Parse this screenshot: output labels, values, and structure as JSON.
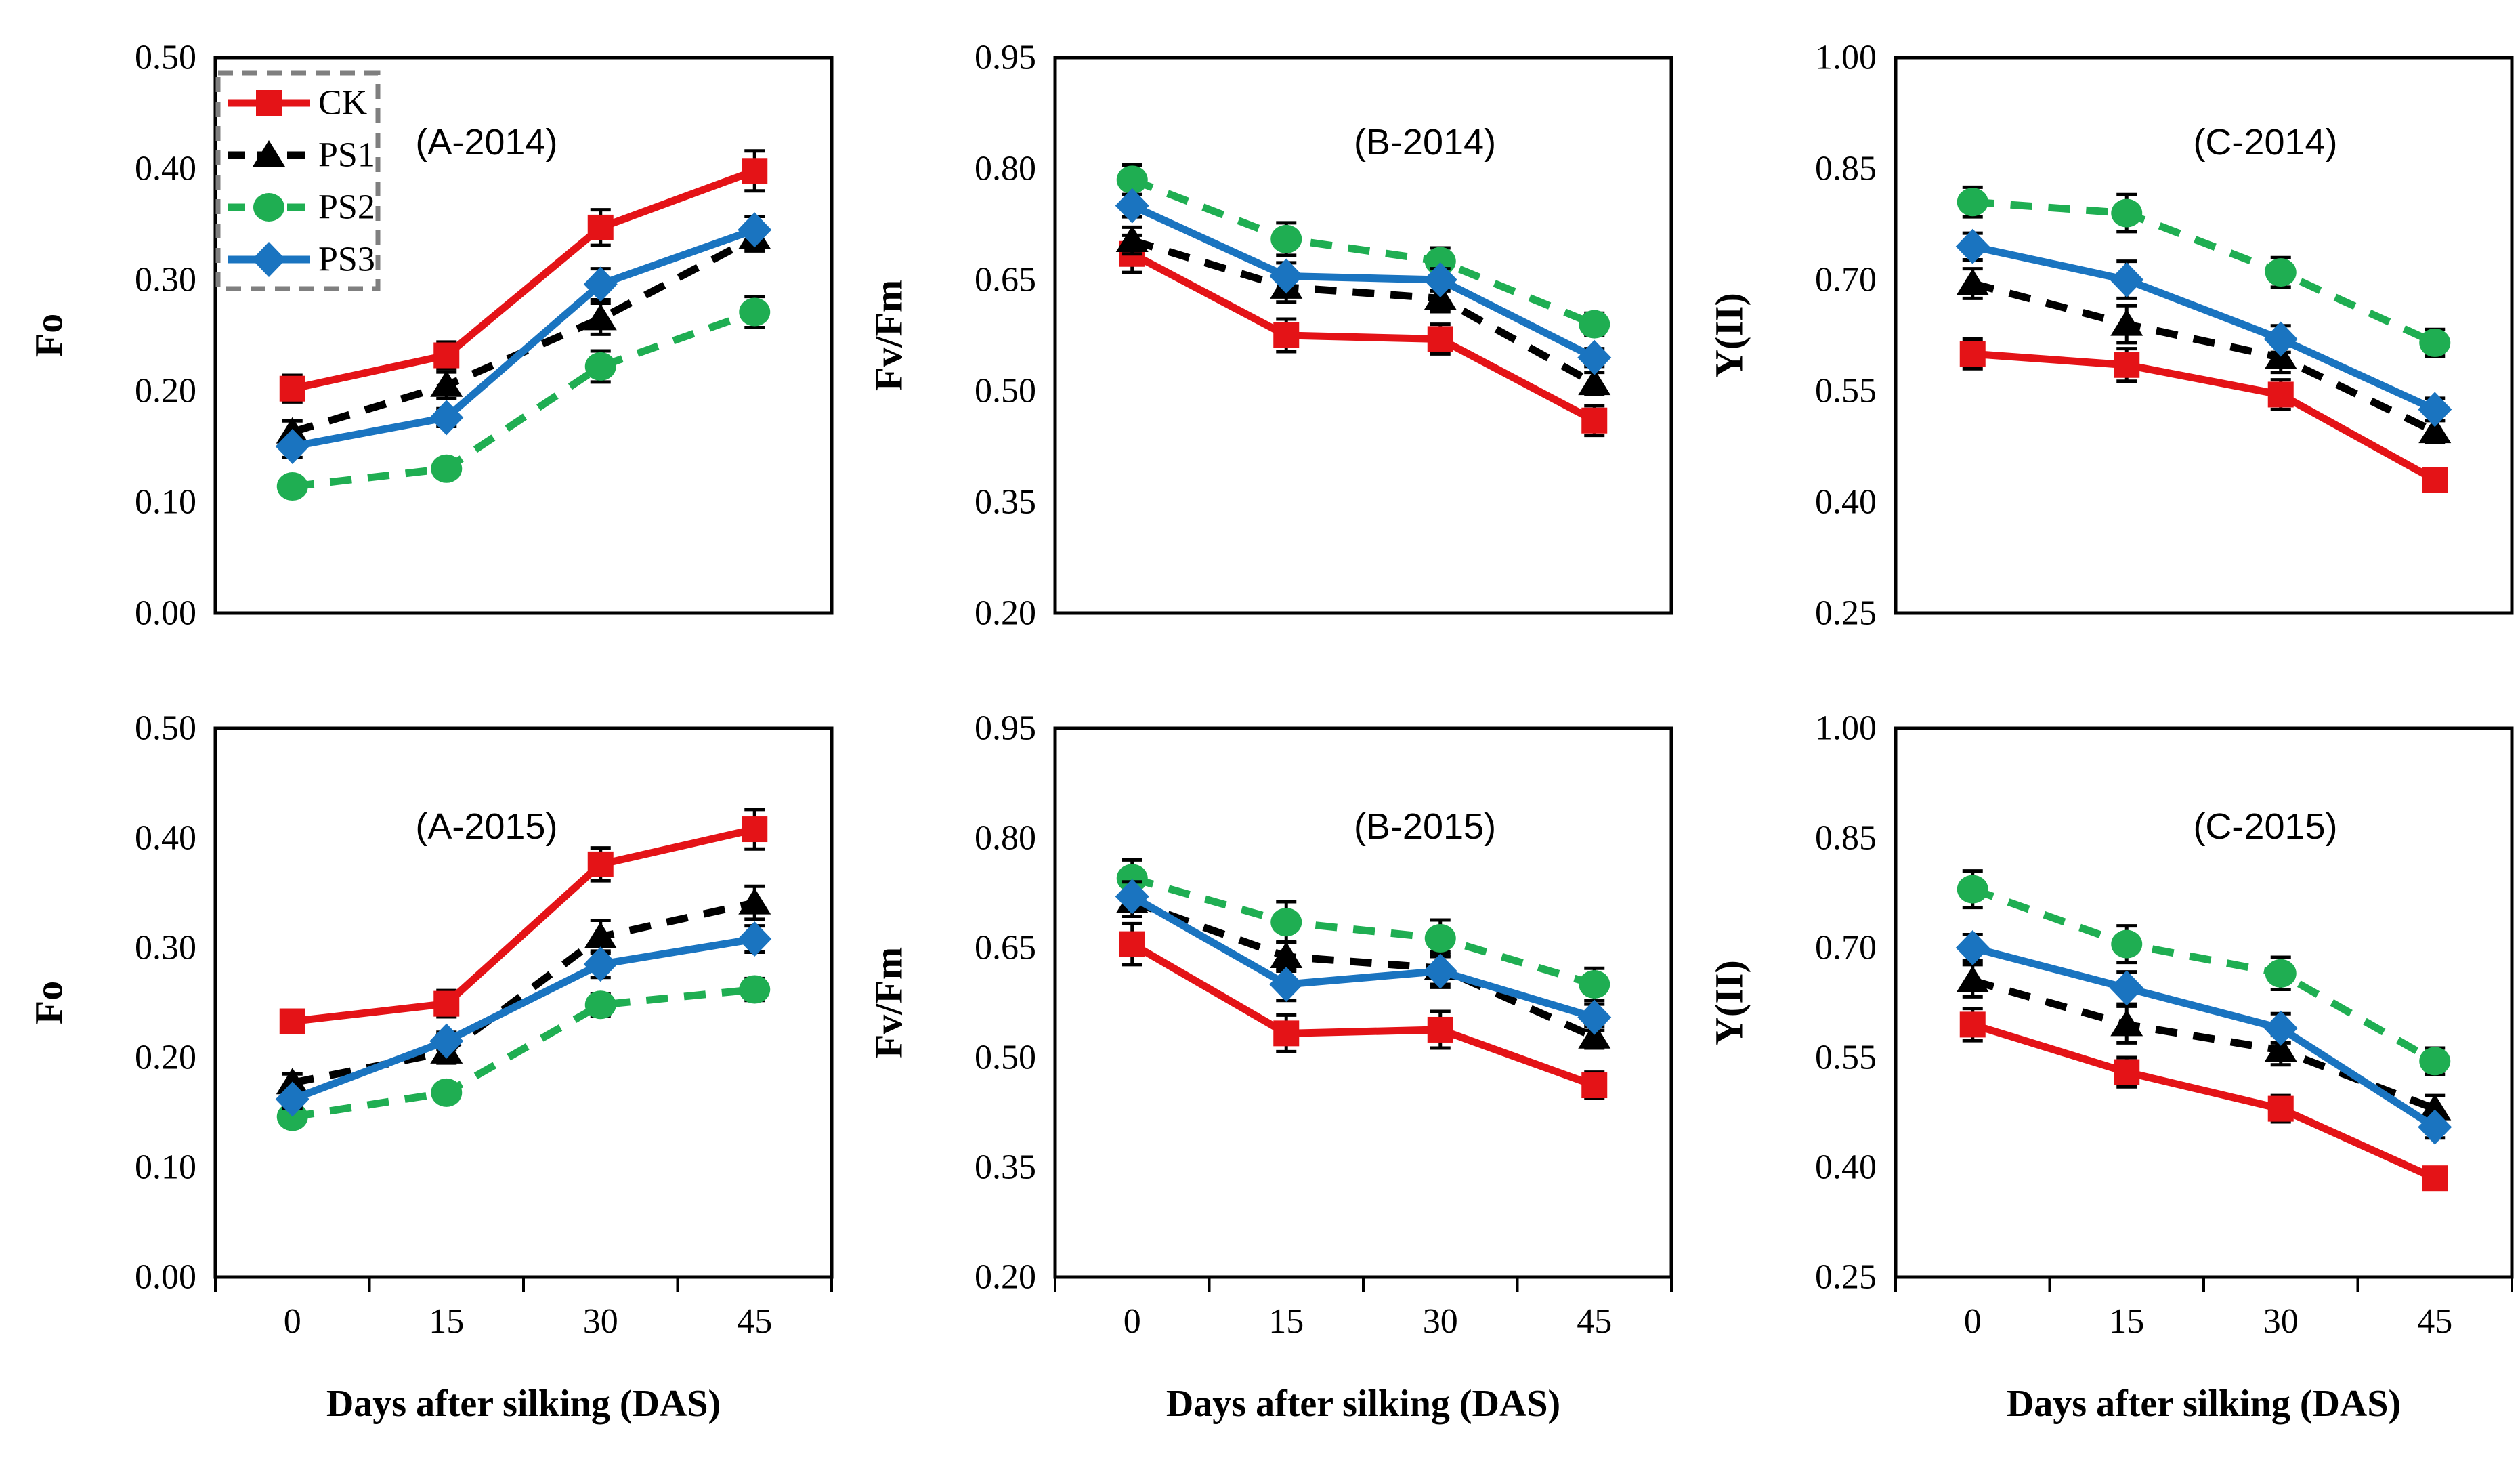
{
  "figure": {
    "background": "#ffffff",
    "frame_color": "#000000"
  },
  "legend": {
    "location": "inside-top-left-of-panel-A-2014",
    "border_color": "#7f7f7f",
    "border_style": "dashed",
    "items": [
      {
        "label": "CK",
        "color": "#e41317",
        "marker": "square",
        "line": "solid"
      },
      {
        "label": "PS1",
        "color": "#000000",
        "marker": "triangle",
        "line": "dashed"
      },
      {
        "label": "PS2",
        "color": "#1fae52",
        "marker": "circle",
        "line": "dashed"
      },
      {
        "label": "PS3",
        "color": "#1a74c0",
        "marker": "diamond",
        "line": "solid"
      }
    ]
  },
  "x_axis": {
    "label": "Days after silking (DAS)",
    "categories": [
      "0",
      "15",
      "30",
      "45"
    ]
  },
  "chart_data": [
    {
      "type": "line",
      "title": "(A-2014)",
      "ylabel": "Fo",
      "ylim": [
        0.0,
        0.5
      ],
      "yticks": [
        0.0,
        0.1,
        0.2,
        0.3,
        0.4,
        0.5
      ],
      "categories": [
        "0",
        "15",
        "30",
        "45"
      ],
      "xlabel": "",
      "show_x_labels": false,
      "grid": false,
      "legend_position": "upper-left",
      "series": [
        {
          "name": "CK",
          "values": [
            0.202,
            0.232,
            0.347,
            0.398
          ],
          "errors": [
            0.012,
            0.012,
            0.016,
            0.018
          ]
        },
        {
          "name": "PS1",
          "values": [
            0.163,
            0.205,
            0.265,
            0.338
          ],
          "errors": [
            0.01,
            0.012,
            0.014,
            0.012
          ]
        },
        {
          "name": "PS2",
          "values": [
            0.114,
            0.13,
            0.222,
            0.271
          ],
          "errors": [
            0.008,
            0.008,
            0.014,
            0.014
          ]
        },
        {
          "name": "PS3",
          "values": [
            0.15,
            0.176,
            0.296,
            0.345
          ],
          "errors": [
            0.01,
            0.008,
            0.014,
            0.012
          ]
        }
      ]
    },
    {
      "type": "line",
      "title": "(B-2014)",
      "ylabel": "Fv/Fm",
      "ylim": [
        0.2,
        0.95
      ],
      "yticks": [
        0.2,
        0.35,
        0.5,
        0.65,
        0.8,
        0.95
      ],
      "categories": [
        "0",
        "15",
        "30",
        "45"
      ],
      "xlabel": "",
      "show_x_labels": false,
      "grid": false,
      "legend_position": "none",
      "series": [
        {
          "name": "CK",
          "values": [
            0.685,
            0.575,
            0.57,
            0.46
          ],
          "errors": [
            0.025,
            0.022,
            0.02,
            0.02
          ]
        },
        {
          "name": "PS1",
          "values": [
            0.703,
            0.64,
            0.625,
            0.51
          ],
          "errors": [
            0.018,
            0.02,
            0.018,
            0.015
          ]
        },
        {
          "name": "PS2",
          "values": [
            0.785,
            0.705,
            0.675,
            0.59
          ],
          "errors": [
            0.02,
            0.022,
            0.018,
            0.015
          ]
        },
        {
          "name": "PS3",
          "values": [
            0.75,
            0.655,
            0.65,
            0.545
          ],
          "errors": [
            0.015,
            0.018,
            0.015,
            0.012
          ]
        }
      ]
    },
    {
      "type": "line",
      "title": "(C-2014)",
      "ylabel": "Y(II)",
      "ylim": [
        0.25,
        1.0
      ],
      "yticks": [
        0.25,
        0.4,
        0.55,
        0.7,
        0.85,
        1.0
      ],
      "categories": [
        "0",
        "15",
        "30",
        "45"
      ],
      "xlabel": "",
      "show_x_labels": false,
      "grid": false,
      "legend_position": "none",
      "series": [
        {
          "name": "CK",
          "values": [
            0.6,
            0.585,
            0.545,
            0.43
          ],
          "errors": [
            0.02,
            0.022,
            0.02,
            0.015
          ]
        },
        {
          "name": "PS1",
          "values": [
            0.695,
            0.64,
            0.595,
            0.495
          ],
          "errors": [
            0.02,
            0.025,
            0.02,
            0.015
          ]
        },
        {
          "name": "PS2",
          "values": [
            0.805,
            0.79,
            0.71,
            0.615
          ],
          "errors": [
            0.02,
            0.025,
            0.02,
            0.018
          ]
        },
        {
          "name": "PS3",
          "values": [
            0.745,
            0.7,
            0.62,
            0.525
          ],
          "errors": [
            0.018,
            0.025,
            0.018,
            0.015
          ]
        }
      ]
    },
    {
      "type": "line",
      "title": "(A-2015)",
      "ylabel": "Fo",
      "ylim": [
        0.0,
        0.5
      ],
      "yticks": [
        0.0,
        0.1,
        0.2,
        0.3,
        0.4,
        0.5
      ],
      "categories": [
        "0",
        "15",
        "30",
        "45"
      ],
      "xlabel": "Days after silking (DAS)",
      "show_x_labels": true,
      "grid": false,
      "legend_position": "none",
      "series": [
        {
          "name": "CK",
          "values": [
            0.233,
            0.249,
            0.376,
            0.408
          ],
          "errors": [
            0.01,
            0.012,
            0.015,
            0.018
          ]
        },
        {
          "name": "PS1",
          "values": [
            0.177,
            0.205,
            0.31,
            0.341
          ],
          "errors": [
            0.008,
            0.01,
            0.015,
            0.015
          ]
        },
        {
          "name": "PS2",
          "values": [
            0.146,
            0.168,
            0.248,
            0.262
          ],
          "errors": [
            0.008,
            0.008,
            0.01,
            0.01
          ]
        },
        {
          "name": "PS3",
          "values": [
            0.162,
            0.215,
            0.285,
            0.308
          ],
          "errors": [
            0.008,
            0.008,
            0.012,
            0.012
          ]
        }
      ]
    },
    {
      "type": "line",
      "title": "(B-2015)",
      "ylabel": "Fv/Fm",
      "ylim": [
        0.2,
        0.95
      ],
      "yticks": [
        0.2,
        0.35,
        0.5,
        0.65,
        0.8,
        0.95
      ],
      "categories": [
        "0",
        "15",
        "30",
        "45"
      ],
      "xlabel": "Days after silking (DAS)",
      "show_x_labels": true,
      "grid": false,
      "legend_position": "none",
      "series": [
        {
          "name": "CK",
          "values": [
            0.655,
            0.533,
            0.538,
            0.462
          ],
          "errors": [
            0.028,
            0.025,
            0.025,
            0.018
          ]
        },
        {
          "name": "PS1",
          "values": [
            0.713,
            0.638,
            0.622,
            0.528
          ],
          "errors": [
            0.02,
            0.02,
            0.022,
            0.015
          ]
        },
        {
          "name": "PS2",
          "values": [
            0.745,
            0.685,
            0.663,
            0.6
          ],
          "errors": [
            0.025,
            0.028,
            0.025,
            0.022
          ]
        },
        {
          "name": "PS3",
          "values": [
            0.72,
            0.6,
            0.618,
            0.555
          ],
          "errors": [
            0.02,
            0.022,
            0.022,
            0.018
          ]
        }
      ]
    },
    {
      "type": "line",
      "title": "(C-2015)",
      "ylabel": "Y(II)",
      "ylim": [
        0.25,
        1.0
      ],
      "yticks": [
        0.25,
        0.4,
        0.55,
        0.7,
        0.85,
        1.0
      ],
      "categories": [
        "0",
        "15",
        "30",
        "45"
      ],
      "xlabel": "Days after silking (DAS)",
      "show_x_labels": true,
      "grid": false,
      "legend_position": "none",
      "series": [
        {
          "name": "CK",
          "values": [
            0.595,
            0.53,
            0.48,
            0.385
          ],
          "errors": [
            0.022,
            0.02,
            0.018,
            0.012
          ]
        },
        {
          "name": "PS1",
          "values": [
            0.655,
            0.595,
            0.56,
            0.48
          ],
          "errors": [
            0.022,
            0.025,
            0.02,
            0.018
          ]
        },
        {
          "name": "PS2",
          "values": [
            0.78,
            0.705,
            0.665,
            0.545
          ],
          "errors": [
            0.025,
            0.025,
            0.022,
            0.018
          ]
        },
        {
          "name": "PS3",
          "values": [
            0.7,
            0.645,
            0.59,
            0.455
          ],
          "errors": [
            0.018,
            0.022,
            0.02,
            0.015
          ]
        }
      ]
    }
  ]
}
